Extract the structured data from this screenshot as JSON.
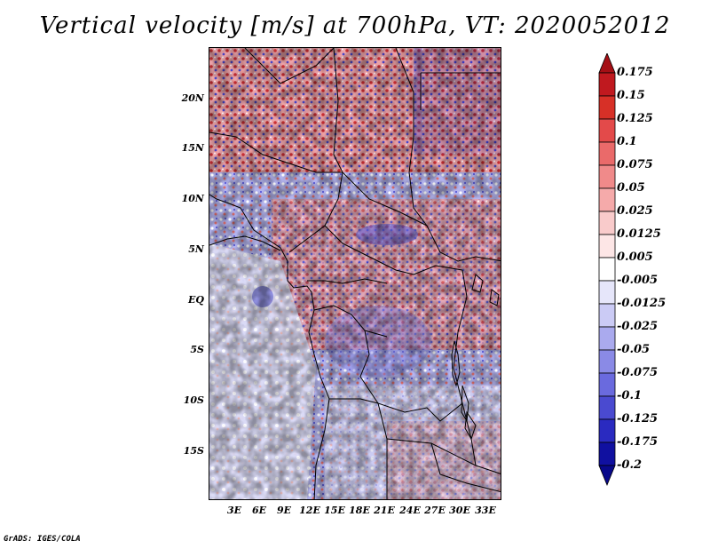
{
  "title": "Vertical velocity [m/s] at 700hPa, VT: 2020052012",
  "credit": "GrADS: IGES/COLA",
  "lat_labels": [
    "20N",
    "15N",
    "10N",
    "5N",
    "EQ",
    "5S",
    "10S",
    "15S"
  ],
  "lat_values": [
    20,
    15,
    10,
    5,
    0,
    -5,
    -10,
    -15
  ],
  "lon_labels": [
    "3E",
    "6E",
    "9E",
    "12E",
    "15E",
    "18E",
    "21E",
    "24E",
    "27E",
    "30E",
    "33E"
  ],
  "lon_values": [
    3,
    6,
    9,
    12,
    15,
    18,
    21,
    24,
    27,
    30,
    33
  ],
  "colorbar": {
    "labels": [
      "0.175",
      "0.15",
      "0.125",
      "0.1",
      "0.075",
      "0.05",
      "0.025",
      "0.0125",
      "0.005",
      "-0.005",
      "-0.0125",
      "-0.025",
      "-0.05",
      "-0.075",
      "-0.1",
      "-0.125",
      "-0.175",
      "-0.2"
    ],
    "colors": [
      "#a50f15",
      "#c0191f",
      "#d73027",
      "#e34a4a",
      "#ea6a6a",
      "#f08a8a",
      "#f5aaaa",
      "#f9cbcb",
      "#fde6e6",
      "#ffffff",
      "#e6e6fa",
      "#cbcbf5",
      "#aaaaee",
      "#8a8ae6",
      "#6a6ade",
      "#4a4ad0",
      "#2a2ac0",
      "#1010a0",
      "#08088a"
    ]
  }
}
